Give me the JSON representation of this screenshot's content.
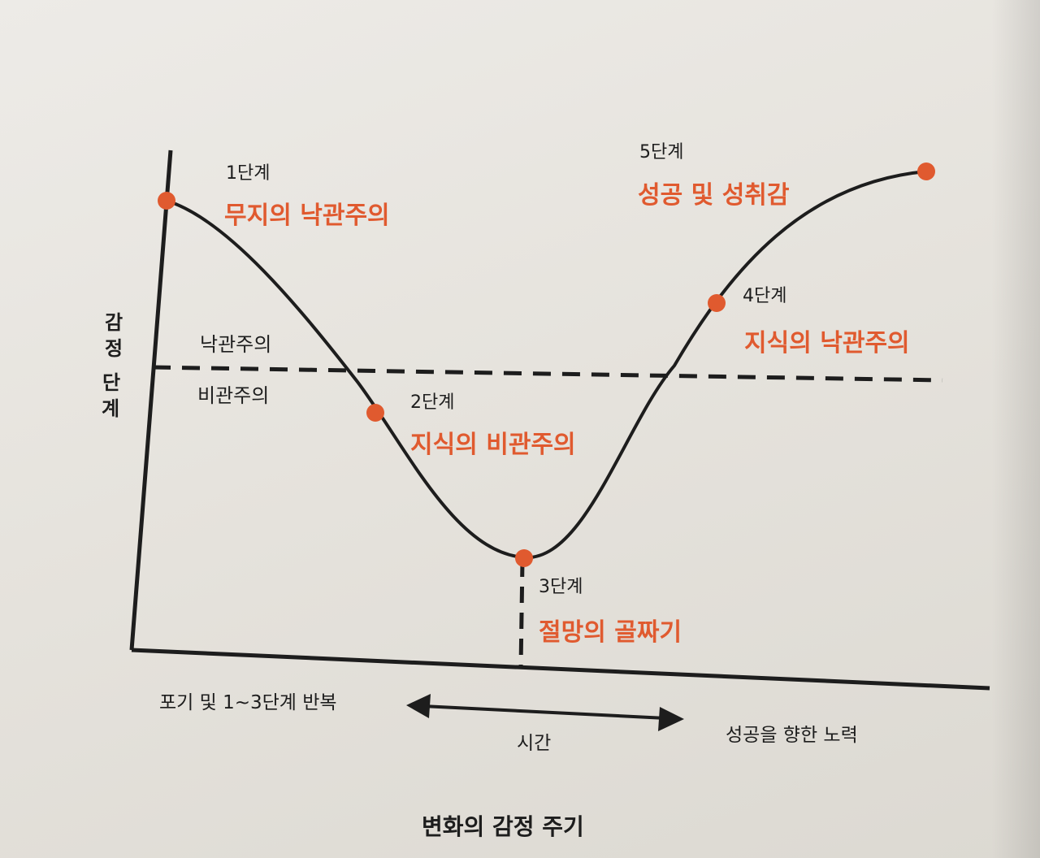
{
  "figure": {
    "title": "변화의 감정 주기",
    "y_axis_label": [
      "감",
      "정",
      " ",
      "단",
      "계"
    ],
    "zone_above": "낙관주의",
    "zone_below": "비관주의",
    "time_label": "시간",
    "left_note": "포기 및 1~3단계 반복",
    "right_note": "성공을 향한 노력"
  },
  "stages": [
    {
      "step": "1단계",
      "name": "무지의 낙관주의"
    },
    {
      "step": "2단계",
      "name": "지식의 비관주의"
    },
    {
      "step": "3단계",
      "name": "절망의 골짜기"
    },
    {
      "step": "4단계",
      "name": "지식의 낙관주의"
    },
    {
      "step": "5단계",
      "name": "성공 및 성취감"
    }
  ],
  "colors": {
    "accent": "#e05a2f",
    "ink": "#1d1d1d"
  }
}
